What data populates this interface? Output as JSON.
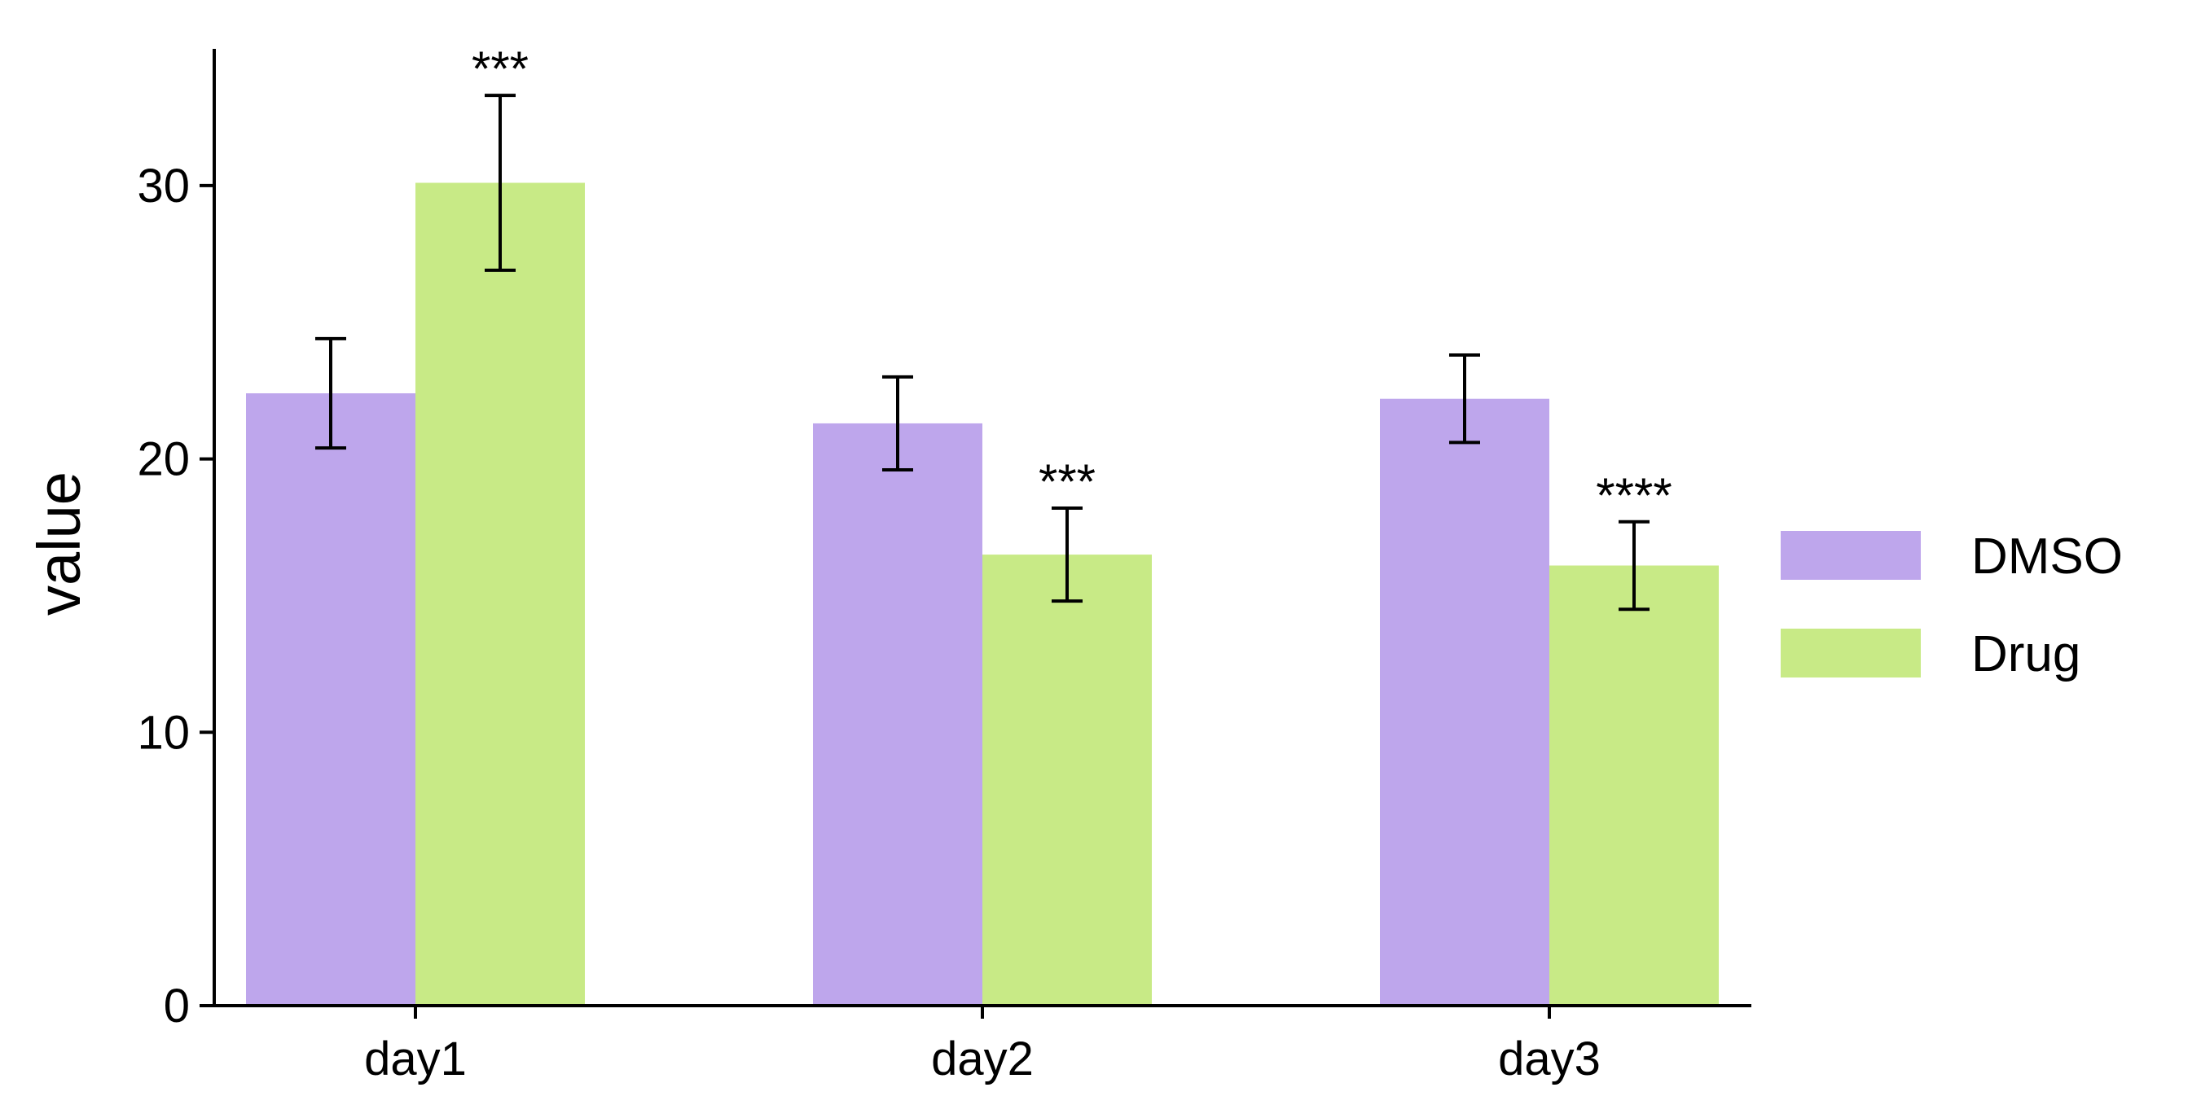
{
  "chart_data": {
    "type": "bar",
    "categories": [
      "day1",
      "day2",
      "day3"
    ],
    "series": [
      {
        "name": "DMSO",
        "color": "#BEA6EC",
        "values": [
          22.4,
          21.3,
          22.2
        ],
        "errors": [
          2.0,
          1.7,
          1.6
        ],
        "significance": [
          "",
          "",
          ""
        ]
      },
      {
        "name": "Drug",
        "color": "#C8EA86",
        "values": [
          30.1,
          16.5,
          16.1
        ],
        "errors": [
          3.2,
          1.7,
          1.6
        ],
        "significance": [
          "***",
          "***",
          "****"
        ]
      }
    ],
    "xlabel": "",
    "ylabel": "value",
    "ylim": [
      0,
      35
    ],
    "yticks": [
      0,
      10,
      20,
      30
    ],
    "grid": false,
    "legend": "right"
  }
}
